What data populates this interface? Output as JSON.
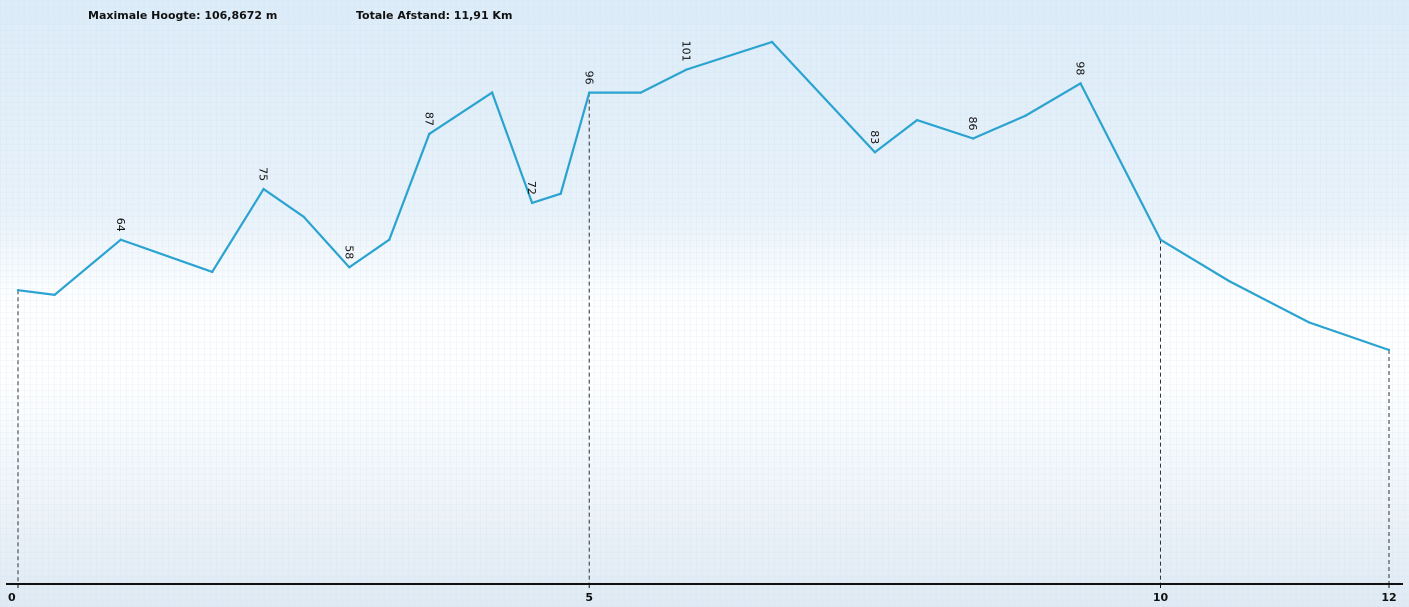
{
  "header": {
    "max_height_text": "Maximale Hoogte: 106,8672 m",
    "total_distance_text": "Totale Afstand: 11,91 Km"
  },
  "colors": {
    "line": "#2aa3d0",
    "axis": "#111111",
    "guide": "#333333",
    "grid": "#d7e6f3",
    "background_top": "#dcecf8",
    "background_mid": "#ffffff"
  },
  "chart_data": {
    "type": "line",
    "title": "",
    "xlabel": "",
    "ylabel": "",
    "xlim": [
      0,
      12
    ],
    "ylim": [
      0,
      115
    ],
    "x_ticks": [
      {
        "value": 0,
        "label": "0"
      },
      {
        "value": 5,
        "label": "5"
      },
      {
        "value": 10,
        "label": "10"
      },
      {
        "value": 12,
        "label": "12"
      }
    ],
    "grid": true,
    "series": [
      {
        "x": [
          0.0,
          0.32,
          0.9,
          1.7,
          2.15,
          2.5,
          2.9,
          3.25,
          3.6,
          4.15,
          4.5,
          4.75,
          5.0,
          5.45,
          5.85,
          6.6,
          7.5,
          7.87,
          8.36,
          8.82,
          9.3,
          10.0,
          10.6,
          11.3,
          12.0
        ],
        "y": [
          53,
          52,
          64,
          57,
          75,
          69,
          58,
          64,
          87,
          96,
          72,
          74,
          96,
          96,
          101,
          107,
          83,
          90,
          86,
          91,
          98,
          64,
          55,
          46,
          40
        ],
        "labels": [
          {
            "index": 2,
            "text": "64"
          },
          {
            "index": 4,
            "text": "75"
          },
          {
            "index": 6,
            "text": "58"
          },
          {
            "index": 8,
            "text": "87"
          },
          {
            "index": 10,
            "text": "72"
          },
          {
            "index": 12,
            "text": "96"
          },
          {
            "index": 14,
            "text": "101"
          },
          {
            "index": 16,
            "text": "83"
          },
          {
            "index": 18,
            "text": "86"
          },
          {
            "index": 20,
            "text": "98"
          }
        ]
      }
    ],
    "guides_x": [
      0,
      5,
      10,
      12
    ]
  }
}
